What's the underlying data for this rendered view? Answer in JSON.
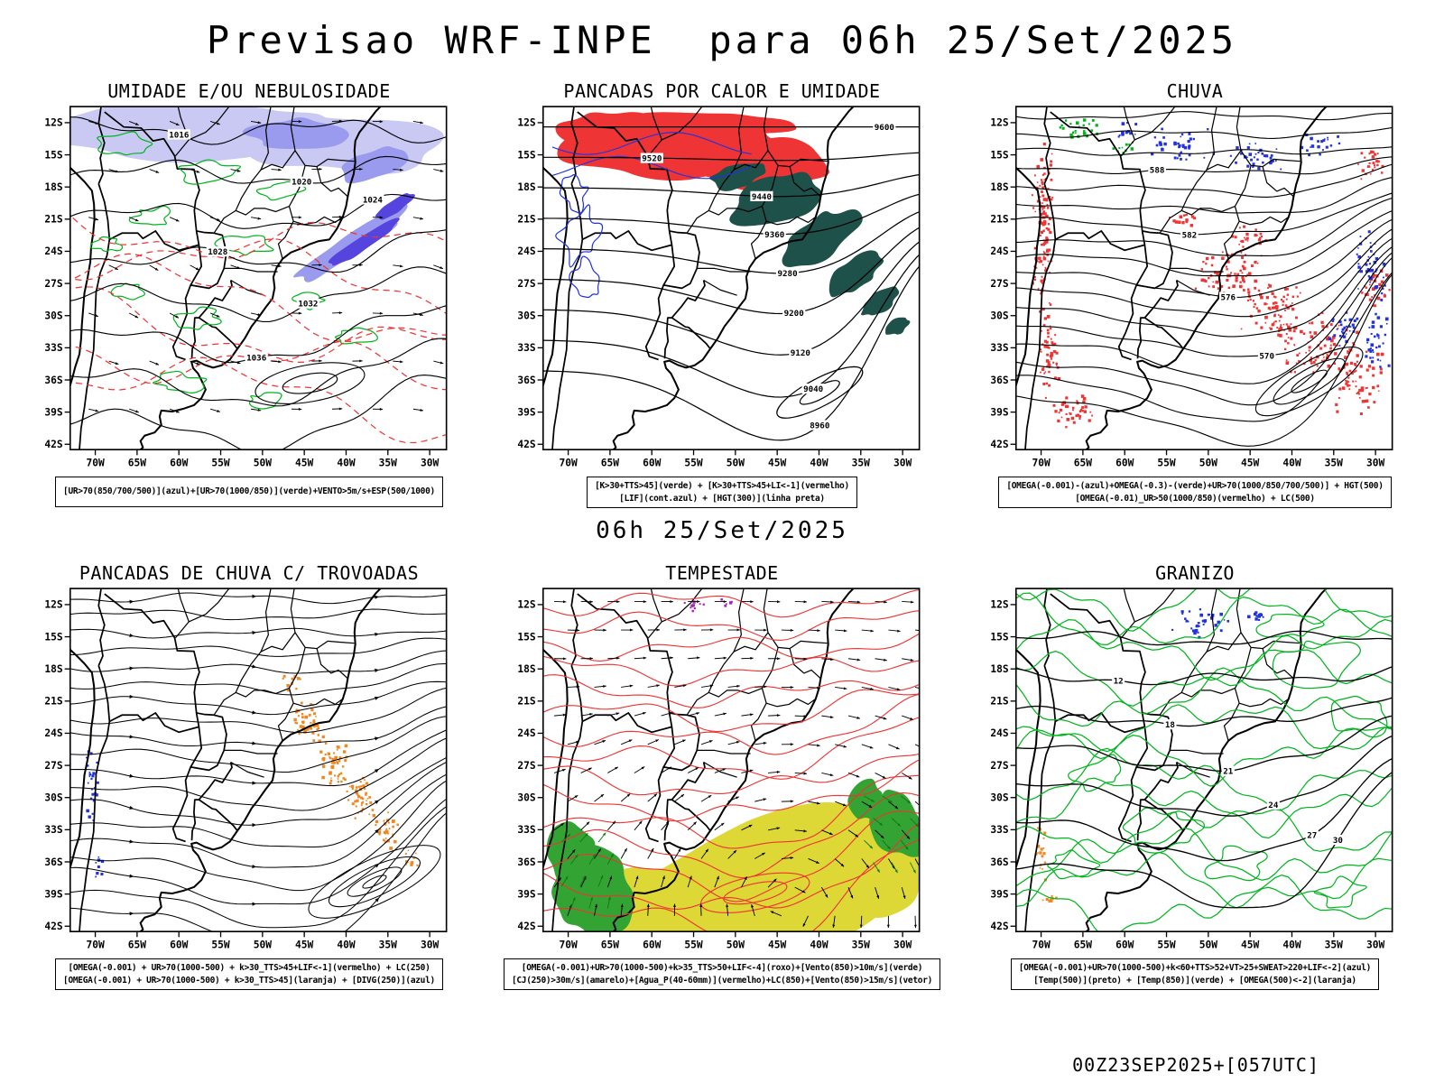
{
  "page": {
    "title": "Previsao WRF-INPE  para 06h 25/Set/2025",
    "valid_label": "06h 25/Set/2025",
    "run_stamp": "00Z23SEP2025+[057UTC]"
  },
  "axes": {
    "lat_ticks": [
      "12S",
      "15S",
      "18S",
      "21S",
      "24S",
      "27S",
      "30S",
      "33S",
      "36S",
      "39S",
      "42S"
    ],
    "lon_ticks": [
      "70W",
      "65W",
      "60W",
      "55W",
      "50W",
      "45W",
      "40W",
      "35W",
      "30W"
    ]
  },
  "colors": {
    "black": "#000000",
    "red": "#ee3434",
    "green": "#00b41e",
    "teal": "#1d5149",
    "blue": "#2233dd",
    "lavender": "#c9c9f4",
    "periwinkle": "#9a9aee",
    "strong_blue": "#5544dd",
    "orange": "#ee8822",
    "yellow": "#ddd835",
    "green_fill": "#33a433",
    "purple": "#aa22bb"
  },
  "panels": [
    {
      "id": "umidade",
      "title": "UMIDADE E/OU NEBULOSIDADE",
      "legend": [
        "[UR>70(850/700/500)](azul)+[UR>70(1000/850)](verde)+VENTO>5m/s+ESP(500/1000)"
      ],
      "contour_labels": [
        "1016",
        "1020",
        "1024",
        "1028",
        "1032",
        "1036"
      ]
    },
    {
      "id": "pancadas_calor",
      "title": "PANCADAS POR CALOR E UMIDADE",
      "legend": [
        "[K>30+TTS>45](verde) + [K>30+TTS>45+LI<-1](vermelho)",
        "[LIF](cont.azul) + [HGT(300)](linha preta)"
      ],
      "contour_labels": [
        "9600",
        "9520",
        "9440",
        "9360",
        "9280",
        "9200",
        "9120",
        "9040",
        "8960"
      ]
    },
    {
      "id": "chuva",
      "title": "CHUVA",
      "legend": [
        "[OMEGA(-0.001)-(azul)+OMEGA(-0.3)-(verde)+UR>70(1000/850/700/500)] + HGT(500)",
        "[OMEGA(-0.01)_UR>50(1000/850)(vermelho) + LC(500)"
      ],
      "contour_labels": [
        "588",
        "582",
        "576",
        "570"
      ]
    },
    {
      "id": "trovoadas",
      "title": "PANCADAS DE CHUVA C/ TROVOADAS",
      "legend": [
        "[OMEGA(-0.001) + UR>70(1000-500) + k>30_TTS>45+LIF<-1](vermelho) + LC(250)",
        "[OMEGA(-0.001) + UR>70(1000-500) + k>30_TTS>45](laranja) + [DIVG(250)](azul)"
      ],
      "contour_labels": []
    },
    {
      "id": "tempestade",
      "title": "TEMPESTADE",
      "legend": [
        "[OMEGA(-0.001)+UR>70(1000-500)+k>35_TTS>50+LIF<-4](roxo)+[Vento(850)>10m/s](verde)",
        "[CJ(250)>30m/s](amarelo)+[Agua_P(40-60mm)](vermelho)+LC(850)+[Vento(850)>15m/s](vetor)"
      ],
      "contour_labels": []
    },
    {
      "id": "granizo",
      "title": "GRANIZO",
      "legend": [
        "[OMEGA(-0.001)+UR>70(1000-500)+k<60+TTS>52+VT>25+SWEAT>220+LIF<-2](azul)",
        "[Temp(500)](preto) + [Temp(850)](verde) + [OMEGA(500)<-2](laranja)"
      ],
      "contour_labels": [
        "12",
        "18",
        "21",
        "24",
        "27",
        "30"
      ]
    }
  ]
}
